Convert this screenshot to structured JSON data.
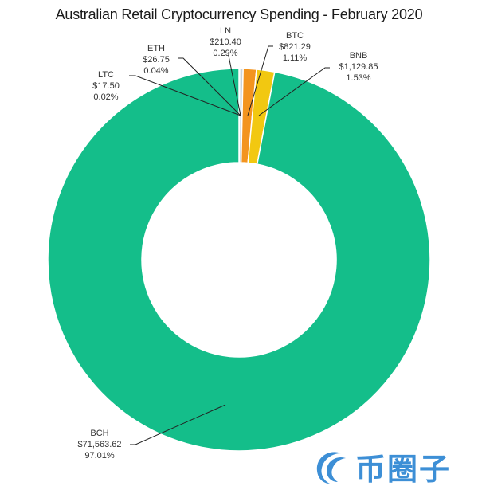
{
  "chart_data": {
    "type": "pie",
    "subtype": "donut",
    "title": "Australian Retail Cryptocurrency Spending - February 2020",
    "start_angle_deg": 0,
    "direction": "clockwise",
    "center": [
      300,
      326
    ],
    "outer_radius": 240,
    "inner_radius": 122,
    "slices": [
      {
        "name": "LTC",
        "value": 17.5,
        "value_label": "$17.50",
        "percent_label": "0.02%",
        "color": "#ffffff"
      },
      {
        "name": "ETH",
        "value": 26.75,
        "value_label": "$26.75",
        "percent_label": "0.04%",
        "color": "#d9d9d9"
      },
      {
        "name": "LN",
        "value": 210.4,
        "value_label": "$210.40",
        "percent_label": "0.29%",
        "color": "#c9d3da"
      },
      {
        "name": "BTC",
        "value": 821.29,
        "value_label": "$821.29",
        "percent_label": "1.11%",
        "color": "#f3941f"
      },
      {
        "name": "BNB",
        "value": 1129.85,
        "value_label": "$1,129.85",
        "percent_label": "1.53%",
        "color": "#f2c811"
      },
      {
        "name": "BCH",
        "value": 71563.62,
        "value_label": "$71,563.62",
        "percent_label": "97.01%",
        "color": "#14be8a"
      }
    ],
    "legend": "none",
    "data_labels": "callouts with leader lines"
  },
  "labels": {
    "ltc": {
      "name": "LTC",
      "value": "$17.50",
      "pct": "0.02%"
    },
    "eth": {
      "name": "ETH",
      "value": "$26.75",
      "pct": "0.04%"
    },
    "ln": {
      "name": "LN",
      "value": "$210.40",
      "pct": "0.29%"
    },
    "btc": {
      "name": "BTC",
      "value": "$821.29",
      "pct": "1.11%"
    },
    "bnb": {
      "name": "BNB",
      "value": "$1,129.85",
      "pct": "1.53%"
    },
    "bch": {
      "name": "BCH",
      "value": "$71,563.62",
      "pct": "97.01%"
    }
  },
  "watermark": {
    "text": "币圈子",
    "icon": "coin-circle-logo-icon",
    "color": "#3d8fd6"
  }
}
